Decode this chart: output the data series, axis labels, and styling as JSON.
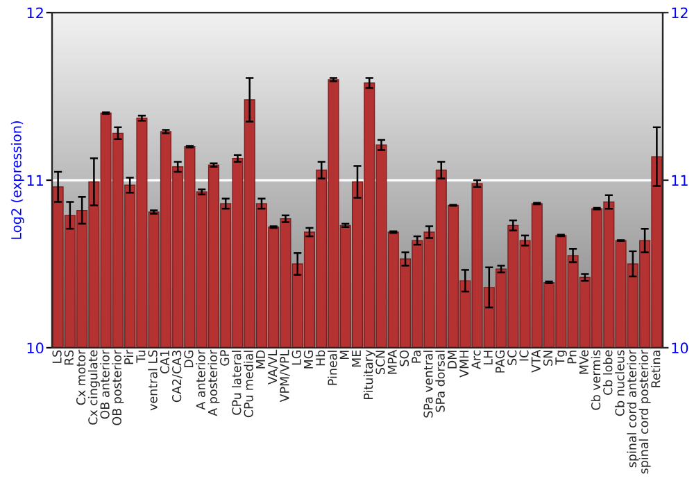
{
  "chart_data": {
    "type": "bar",
    "ylabel": "Log2 (expression)",
    "categories": [
      "LS",
      "RS",
      "Cx motor",
      "Cx cingulate",
      "OB anterior",
      "OB posterior",
      "Pir",
      "Tu",
      "ventral LS",
      "CA1",
      "CA2/CA3",
      "DG",
      "A anterior",
      "A posterior",
      "GP",
      "CPu lateral",
      "CPu medial",
      "MD",
      "VA/VL",
      "VPM/VPL",
      "LG",
      "MG",
      "Hb",
      "Pineal",
      "M",
      "ME",
      "Pituitary",
      "SCN",
      "MPA",
      "SO",
      "Pa",
      "SPa ventral",
      "SPa dorsal",
      "DM",
      "VMH",
      "Arc",
      "LH",
      "PAG",
      "SC",
      "IC",
      "VTA",
      "SN",
      "Tg",
      "Pn",
      "MVe",
      "Cb vermis",
      "Cb lobe",
      "Cb nucleus",
      "spinal cord anterior",
      "spinal cord posterior",
      "Retina"
    ],
    "values": [
      10.96,
      10.79,
      10.82,
      10.99,
      11.4,
      11.28,
      10.97,
      11.37,
      10.81,
      11.29,
      11.08,
      11.2,
      10.93,
      11.09,
      10.86,
      11.13,
      11.48,
      10.86,
      10.72,
      10.77,
      10.5,
      10.69,
      11.06,
      11.6,
      10.73,
      10.99,
      11.58,
      11.21,
      10.69,
      10.53,
      10.64,
      10.69,
      11.06,
      10.85,
      10.4,
      10.98,
      10.36,
      10.47,
      10.73,
      10.64,
      10.86,
      10.39,
      10.67,
      10.55,
      10.42,
      10.83,
      10.87,
      10.64,
      10.5,
      10.64,
      11.14
    ],
    "errors": [
      0.09,
      0.08,
      0.08,
      0.14,
      0.005,
      0.035,
      0.045,
      0.015,
      0.01,
      0.01,
      0.03,
      0.005,
      0.015,
      0.01,
      0.03,
      0.02,
      0.13,
      0.03,
      0.005,
      0.02,
      0.065,
      0.025,
      0.05,
      0.01,
      0.01,
      0.095,
      0.03,
      0.03,
      0.005,
      0.04,
      0.025,
      0.035,
      0.05,
      0.003,
      0.065,
      0.02,
      0.12,
      0.02,
      0.03,
      0.03,
      0.005,
      0.005,
      0.005,
      0.04,
      0.02,
      0.005,
      0.04,
      0.003,
      0.075,
      0.07,
      0.175
    ],
    "color": "#b43232",
    "ylim": [
      10,
      12
    ],
    "yticks": [
      10,
      11,
      12
    ],
    "y2lim": [
      10,
      12
    ],
    "y2ticks": [
      10,
      11,
      12
    ],
    "grid": "y",
    "legend": false
  }
}
